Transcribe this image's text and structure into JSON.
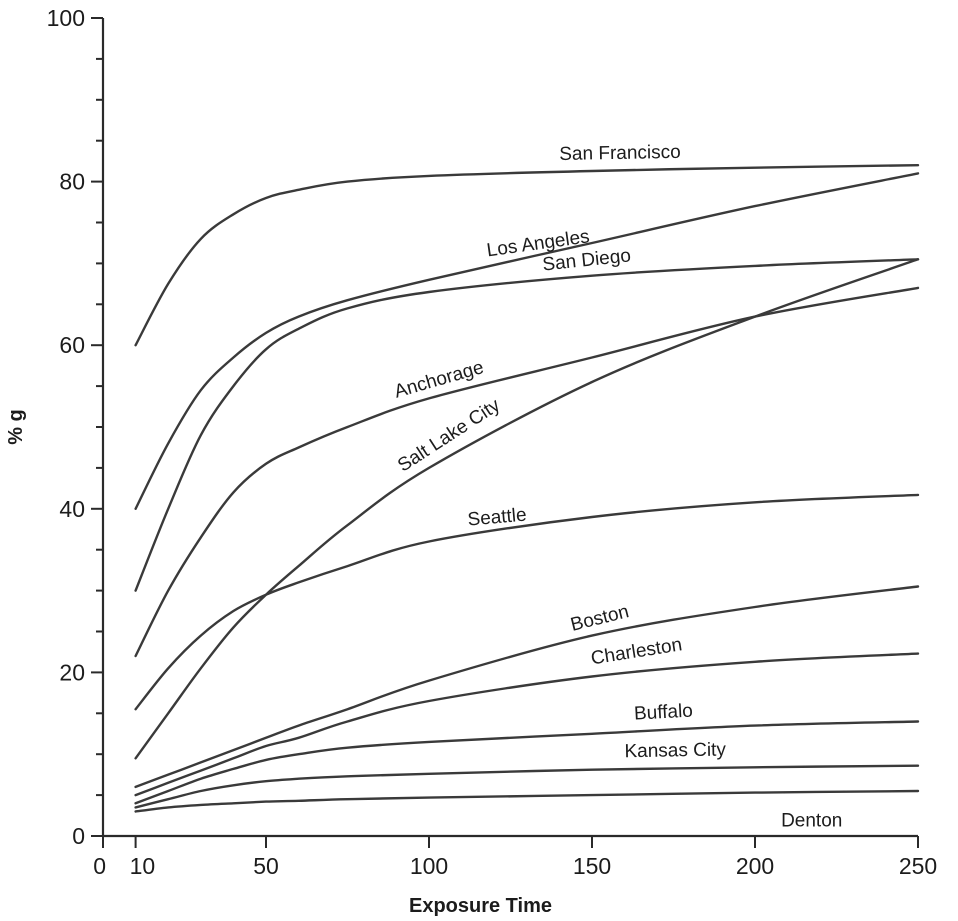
{
  "chart_data": {
    "type": "line",
    "title": "",
    "xlabel": "Exposure Time",
    "ylabel": "% g",
    "xlim": [
      0,
      250
    ],
    "ylim": [
      0,
      100
    ],
    "x_ticks": [
      0,
      10,
      50,
      100,
      150,
      200,
      250
    ],
    "x_tick_labels": [
      "0",
      "10",
      "50",
      "100",
      "150",
      "200",
      "250"
    ],
    "y_ticks": [
      0,
      20,
      40,
      60,
      80,
      100
    ],
    "y_tick_labels": [
      "0",
      "20",
      "40",
      "60",
      "80",
      "100"
    ],
    "y_minor_step": 5,
    "grid": false,
    "legend": "none (series labeled inline)",
    "line_color": "#3a3a3a",
    "series": [
      {
        "name": "San Francisco",
        "x": [
          10,
          20,
          30,
          40,
          50,
          60,
          75,
          100,
          150,
          200,
          250
        ],
        "values": [
          60,
          67.5,
          73,
          76,
          78,
          79,
          80,
          80.7,
          81.3,
          81.7,
          82
        ]
      },
      {
        "name": "Los Angeles",
        "x": [
          10,
          20,
          30,
          40,
          50,
          60,
          75,
          100,
          150,
          200,
          250
        ],
        "values": [
          40,
          48,
          54.5,
          58.5,
          61.5,
          63.5,
          65.5,
          68,
          72.5,
          77,
          81
        ]
      },
      {
        "name": "San Diego",
        "x": [
          10,
          20,
          30,
          40,
          50,
          60,
          75,
          100,
          150,
          200,
          250
        ],
        "values": [
          30,
          40,
          49,
          55,
          59.5,
          62,
          64.5,
          66.5,
          68.5,
          69.7,
          70.5
        ]
      },
      {
        "name": "Anchorage",
        "x": [
          10,
          20,
          30,
          40,
          50,
          60,
          75,
          100,
          150,
          200,
          250
        ],
        "values": [
          22,
          30,
          36.5,
          42,
          45.5,
          47.5,
          50,
          53.5,
          58.5,
          63.5,
          67
        ]
      },
      {
        "name": "Salt Lake City",
        "x": [
          10,
          20,
          30,
          40,
          50,
          60,
          75,
          100,
          150,
          200,
          250
        ],
        "values": [
          9.5,
          15,
          20.5,
          25.5,
          29.5,
          33,
          38,
          45,
          55.5,
          63.5,
          70.5
        ]
      },
      {
        "name": "Seattle",
        "x": [
          10,
          20,
          30,
          40,
          50,
          60,
          75,
          100,
          150,
          200,
          250
        ],
        "values": [
          15.5,
          20.5,
          24.5,
          27.5,
          29.5,
          31,
          33,
          36,
          39,
          40.8,
          41.7
        ]
      },
      {
        "name": "Boston",
        "x": [
          10,
          20,
          30,
          40,
          50,
          60,
          75,
          100,
          150,
          200,
          250
        ],
        "values": [
          6,
          7.5,
          9,
          10.5,
          12,
          13.5,
          15.5,
          19,
          24.5,
          28,
          30.5
        ]
      },
      {
        "name": "Charleston",
        "x": [
          10,
          20,
          30,
          40,
          50,
          60,
          75,
          100,
          150,
          200,
          250
        ],
        "values": [
          5,
          6.5,
          8,
          9.5,
          11,
          12,
          14,
          16.5,
          19.5,
          21.3,
          22.3
        ]
      },
      {
        "name": "Buffalo",
        "x": [
          10,
          20,
          30,
          40,
          50,
          60,
          75,
          100,
          150,
          200,
          250
        ],
        "values": [
          4,
          5.5,
          7,
          8.2,
          9.3,
          10,
          10.8,
          11.5,
          12.5,
          13.5,
          14
        ]
      },
      {
        "name": "Kansas City",
        "x": [
          10,
          20,
          30,
          40,
          50,
          60,
          75,
          100,
          150,
          200,
          250
        ],
        "values": [
          3.5,
          4.5,
          5.5,
          6.2,
          6.7,
          7,
          7.3,
          7.6,
          8.1,
          8.4,
          8.6
        ]
      },
      {
        "name": "Denton",
        "x": [
          10,
          20,
          30,
          40,
          50,
          60,
          75,
          100,
          150,
          200,
          250
        ],
        "values": [
          3,
          3.5,
          3.8,
          4,
          4.2,
          4.3,
          4.5,
          4.7,
          5,
          5.3,
          5.5
        ]
      }
    ]
  }
}
